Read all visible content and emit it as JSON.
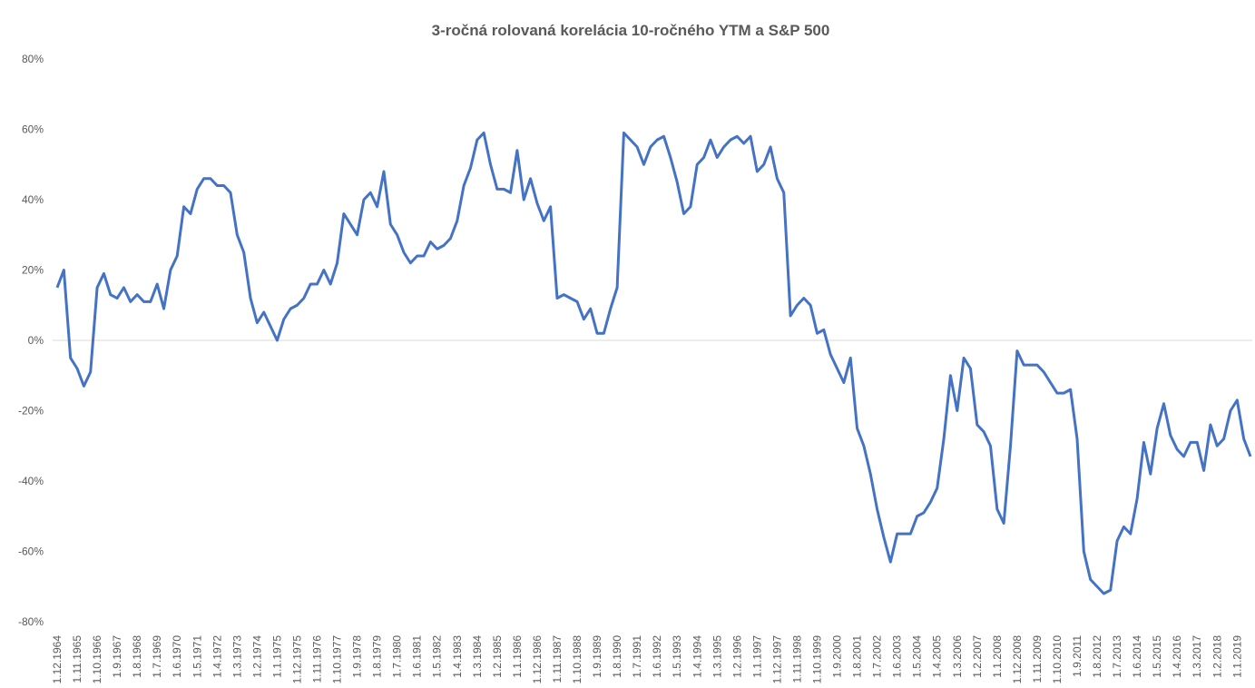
{
  "chart_data": {
    "type": "line",
    "title": "3-ročná rolovaná korelácia 10-ročného YTM a S&P 500",
    "categories": [
      "1.12.1964",
      null,
      null,
      "1.11.1965",
      null,
      null,
      "1.10.1966",
      null,
      null,
      "1.9.1967",
      null,
      null,
      "1.8.1968",
      null,
      null,
      "1.7.1969",
      null,
      null,
      "1.6.1970",
      null,
      null,
      "1.5.1971",
      null,
      null,
      "1.4.1972",
      null,
      null,
      "1.3.1973",
      null,
      null,
      "1.2.1974",
      null,
      null,
      "1.1.1975",
      null,
      null,
      "1.12.1975",
      null,
      null,
      "1.11.1976",
      null,
      null,
      "1.10.1977",
      null,
      null,
      "1.9.1978",
      null,
      null,
      "1.8.1979",
      null,
      null,
      "1.7.1980",
      null,
      null,
      "1.6.1981",
      null,
      null,
      "1.5.1982",
      null,
      null,
      "1.4.1983",
      null,
      null,
      "1.3.1984",
      null,
      null,
      "1.2.1985",
      null,
      null,
      "1.1.1986",
      null,
      null,
      "1.12.1986",
      null,
      null,
      "1.11.1987",
      null,
      null,
      "1.10.1988",
      null,
      null,
      "1.9.1989",
      null,
      null,
      "1.8.1990",
      null,
      null,
      "1.7.1991",
      null,
      null,
      "1.6.1992",
      null,
      null,
      "1.5.1993",
      null,
      null,
      "1.4.1994",
      null,
      null,
      "1.3.1995",
      null,
      null,
      "1.2.1996",
      null,
      null,
      "1.1.1997",
      null,
      null,
      "1.12.1997",
      null,
      null,
      "1.11.1998",
      null,
      null,
      "1.10.1999",
      null,
      null,
      "1.9.2000",
      null,
      null,
      "1.8.2001",
      null,
      null,
      "1.7.2002",
      null,
      null,
      "1.6.2003",
      null,
      null,
      "1.5.2004",
      null,
      null,
      "1.4.2005",
      null,
      null,
      "1.3.2006",
      null,
      null,
      "1.2.2007",
      null,
      null,
      "1.1.2008",
      null,
      null,
      "1.12.2008",
      null,
      null,
      "1.11.2009",
      null,
      null,
      "1.10.2010",
      null,
      null,
      "1.9.2011",
      null,
      null,
      "1.8.2012",
      null,
      null,
      "1.7.2013",
      null,
      null,
      "1.6.2014",
      null,
      null,
      "1.5.2015",
      null,
      null,
      "1.4.2016",
      null,
      null,
      "1.3.2017",
      null,
      null,
      "1.2.2018",
      null,
      null,
      "1.1.2019",
      null,
      null
    ],
    "series": [
      {
        "name": "korelácia",
        "color": "#4472c4",
        "values": [
          15,
          20,
          -5,
          -8,
          -13,
          -9,
          15,
          19,
          13,
          12,
          15,
          11,
          13,
          11,
          11,
          16,
          9,
          20,
          24,
          38,
          36,
          43,
          46,
          46,
          44,
          44,
          42,
          30,
          25,
          12,
          5,
          8,
          4,
          0,
          6,
          9,
          10,
          12,
          16,
          16,
          20,
          16,
          22,
          36,
          33,
          30,
          40,
          42,
          38,
          48,
          33,
          30,
          25,
          22,
          24,
          24,
          28,
          26,
          27,
          29,
          34,
          44,
          49,
          57,
          59,
          50,
          43,
          43,
          42,
          54,
          40,
          46,
          39,
          34,
          38,
          12,
          13,
          12,
          11,
          6,
          9,
          2,
          2,
          9,
          15,
          59,
          57,
          55,
          50,
          55,
          57,
          58,
          52,
          45,
          36,
          38,
          50,
          52,
          57,
          52,
          55,
          57,
          58,
          56,
          58,
          48,
          50,
          55,
          46,
          42,
          7,
          10,
          12,
          10,
          2,
          3,
          -4,
          -8,
          -12,
          -5,
          -25,
          -30,
          -38,
          -48,
          -56,
          -63,
          -55,
          -55,
          -55,
          -50,
          -49,
          -46,
          -42,
          -28,
          -10,
          -20,
          -5,
          -8,
          -24,
          -26,
          -30,
          -48,
          -52,
          -30,
          -3,
          -7,
          -7,
          -7,
          -9,
          -12,
          -15,
          -15,
          -14,
          -28,
          -60,
          -68,
          -70,
          -72,
          -71,
          -57,
          -53,
          -55,
          -45,
          -29,
          -38,
          -25,
          -18,
          -27,
          -31,
          -33,
          -29,
          -29,
          -37,
          -24,
          -30,
          -28,
          -20,
          -17,
          -28,
          -33
        ]
      }
    ],
    "ylim": [
      -80,
      80
    ],
    "yticks": [
      {
        "value": -80,
        "label": "-80%"
      },
      {
        "value": -60,
        "label": "-60%"
      },
      {
        "value": -40,
        "label": "-40%"
      },
      {
        "value": -20,
        "label": "-20%"
      },
      {
        "value": 0,
        "label": "0%"
      },
      {
        "value": 20,
        "label": "20%"
      },
      {
        "value": 40,
        "label": "40%"
      },
      {
        "value": 60,
        "label": "60%"
      },
      {
        "value": 80,
        "label": "80%"
      }
    ]
  }
}
